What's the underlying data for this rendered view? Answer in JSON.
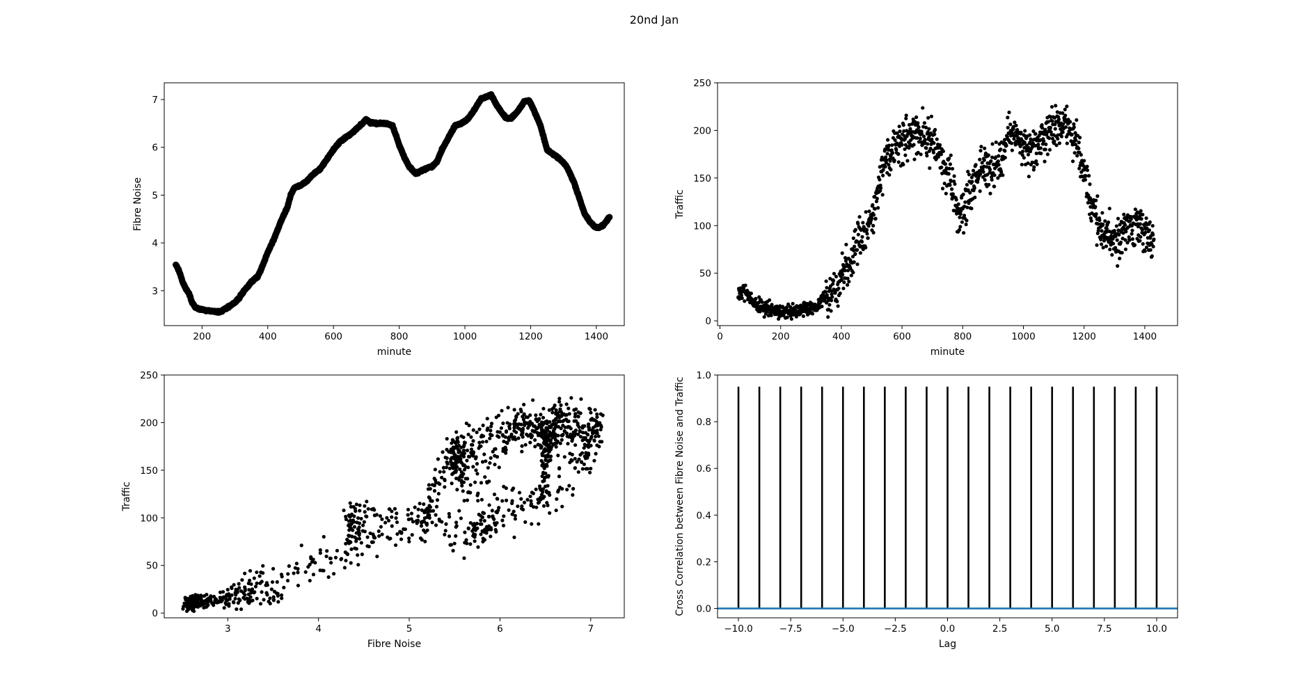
{
  "figure": {
    "title": "20nd Jan",
    "background": "#ffffff",
    "marker_color": "#000000",
    "line_color": "#1f77b4"
  },
  "chart_data": [
    {
      "id": "noise-vs-minute",
      "type": "scatter",
      "title": "",
      "xlabel": "minute",
      "ylabel": "Fibre Noise",
      "xlim": [
        85,
        1485
      ],
      "ylim": [
        2.27,
        7.35
      ],
      "xticks": [
        200,
        400,
        600,
        800,
        1000,
        1200,
        1400
      ],
      "xtick_labels": [
        "200",
        "400",
        "600",
        "800",
        "1000",
        "1200",
        "1400"
      ],
      "yticks": [
        3,
        4,
        5,
        6,
        7
      ],
      "ytick_labels": [
        "3",
        "4",
        "5",
        "6",
        "7"
      ],
      "marker": "large-dot",
      "anchors": [
        [
          120,
          3.55
        ],
        [
          130,
          3.42
        ],
        [
          140,
          3.2
        ],
        [
          150,
          3.05
        ],
        [
          160,
          2.95
        ],
        [
          170,
          2.75
        ],
        [
          180,
          2.65
        ],
        [
          190,
          2.62
        ],
        [
          200,
          2.6
        ],
        [
          220,
          2.58
        ],
        [
          240,
          2.57
        ],
        [
          255,
          2.55
        ],
        [
          270,
          2.62
        ],
        [
          290,
          2.7
        ],
        [
          310,
          2.82
        ],
        [
          330,
          3.02
        ],
        [
          350,
          3.18
        ],
        [
          370,
          3.3
        ],
        [
          380,
          3.45
        ],
        [
          400,
          3.8
        ],
        [
          420,
          4.1
        ],
        [
          440,
          4.45
        ],
        [
          460,
          4.75
        ],
        [
          470,
          5.0
        ],
        [
          480,
          5.15
        ],
        [
          500,
          5.2
        ],
        [
          520,
          5.3
        ],
        [
          540,
          5.45
        ],
        [
          560,
          5.55
        ],
        [
          580,
          5.75
        ],
        [
          600,
          5.95
        ],
        [
          620,
          6.12
        ],
        [
          640,
          6.22
        ],
        [
          660,
          6.32
        ],
        [
          680,
          6.45
        ],
        [
          700,
          6.58
        ],
        [
          710,
          6.52
        ],
        [
          730,
          6.5
        ],
        [
          760,
          6.5
        ],
        [
          780,
          6.45
        ],
        [
          790,
          6.25
        ],
        [
          800,
          6.05
        ],
        [
          815,
          5.8
        ],
        [
          830,
          5.6
        ],
        [
          850,
          5.45
        ],
        [
          865,
          5.5
        ],
        [
          880,
          5.55
        ],
        [
          900,
          5.6
        ],
        [
          915,
          5.7
        ],
        [
          930,
          5.95
        ],
        [
          950,
          6.2
        ],
        [
          970,
          6.45
        ],
        [
          990,
          6.5
        ],
        [
          1010,
          6.6
        ],
        [
          1030,
          6.8
        ],
        [
          1050,
          7.02
        ],
        [
          1065,
          7.05
        ],
        [
          1080,
          7.1
        ],
        [
          1095,
          6.9
        ],
        [
          1110,
          6.75
        ],
        [
          1125,
          6.62
        ],
        [
          1140,
          6.6
        ],
        [
          1160,
          6.75
        ],
        [
          1180,
          6.95
        ],
        [
          1195,
          6.98
        ],
        [
          1210,
          6.78
        ],
        [
          1230,
          6.45
        ],
        [
          1250,
          5.95
        ],
        [
          1270,
          5.85
        ],
        [
          1290,
          5.75
        ],
        [
          1310,
          5.6
        ],
        [
          1330,
          5.3
        ],
        [
          1350,
          4.9
        ],
        [
          1365,
          4.6
        ],
        [
          1380,
          4.45
        ],
        [
          1395,
          4.33
        ],
        [
          1410,
          4.32
        ],
        [
          1425,
          4.4
        ],
        [
          1440,
          4.55
        ]
      ],
      "point_step": 1
    },
    {
      "id": "traffic-vs-minute",
      "type": "scatter",
      "title": "",
      "xlabel": "minute",
      "ylabel": "Traffic",
      "xlim": [
        -8,
        1508
      ],
      "ylim": [
        -5,
        250
      ],
      "xticks": [
        0,
        200,
        400,
        600,
        800,
        1000,
        1200,
        1400
      ],
      "xtick_labels": [
        "0",
        "200",
        "400",
        "600",
        "800",
        "1000",
        "1200",
        "1400"
      ],
      "yticks": [
        0,
        50,
        100,
        150,
        200,
        250
      ],
      "ytick_labels": [
        "0",
        "50",
        "100",
        "150",
        "200",
        "250"
      ],
      "marker": "dot",
      "anchors": [
        [
          60,
          28
        ],
        [
          80,
          30
        ],
        [
          100,
          22
        ],
        [
          120,
          18
        ],
        [
          140,
          14
        ],
        [
          170,
          12
        ],
        [
          200,
          10
        ],
        [
          230,
          10
        ],
        [
          260,
          11
        ],
        [
          290,
          12
        ],
        [
          320,
          15
        ],
        [
          340,
          25
        ],
        [
          360,
          28
        ],
        [
          380,
          30
        ],
        [
          400,
          42
        ],
        [
          420,
          60
        ],
        [
          440,
          72
        ],
        [
          460,
          85
        ],
        [
          480,
          92
        ],
        [
          500,
          110
        ],
        [
          520,
          135
        ],
        [
          540,
          160
        ],
        [
          560,
          172
        ],
        [
          580,
          180
        ],
        [
          600,
          188
        ],
        [
          620,
          190
        ],
        [
          640,
          200
        ],
        [
          660,
          198
        ],
        [
          680,
          192
        ],
        [
          700,
          188
        ],
        [
          720,
          175
        ],
        [
          740,
          162
        ],
        [
          760,
          150
        ],
        [
          770,
          138
        ],
        [
          780,
          120
        ],
        [
          790,
          110
        ],
        [
          800,
          112
        ],
        [
          810,
          125
        ],
        [
          830,
          138
        ],
        [
          850,
          150
        ],
        [
          870,
          160
        ],
        [
          890,
          165
        ],
        [
          910,
          162
        ],
        [
          930,
          170
        ],
        [
          950,
          195
        ],
        [
          970,
          200
        ],
        [
          990,
          188
        ],
        [
          1010,
          180
        ],
        [
          1030,
          182
        ],
        [
          1050,
          188
        ],
        [
          1070,
          195
        ],
        [
          1090,
          200
        ],
        [
          1110,
          205
        ],
        [
          1130,
          208
        ],
        [
          1150,
          210
        ],
        [
          1170,
          190
        ],
        [
          1190,
          165
        ],
        [
          1210,
          140
        ],
        [
          1230,
          120
        ],
        [
          1250,
          100
        ],
        [
          1270,
          92
        ],
        [
          1290,
          88
        ],
        [
          1310,
          88
        ],
        [
          1330,
          95
        ],
        [
          1350,
          100
        ],
        [
          1370,
          100
        ],
        [
          1390,
          95
        ],
        [
          1410,
          90
        ],
        [
          1430,
          85
        ]
      ],
      "noise": 11,
      "point_step": 1
    },
    {
      "id": "traffic-vs-noise",
      "type": "scatter",
      "title": "",
      "xlabel": "Fibre Noise",
      "ylabel": "Traffic",
      "xlim": [
        2.3,
        7.37
      ],
      "ylim": [
        -5,
        250
      ],
      "xticks": [
        3,
        4,
        5,
        6,
        7
      ],
      "xtick_labels": [
        "3",
        "4",
        "5",
        "6",
        "7"
      ],
      "yticks": [
        0,
        50,
        100,
        150,
        200,
        250
      ],
      "ytick_labels": [
        "0",
        "50",
        "100",
        "150",
        "200",
        "250"
      ],
      "marker": "dot",
      "derived_from": [
        "noise-vs-minute",
        "traffic-vs-minute"
      ]
    },
    {
      "id": "cross-correlation",
      "type": "stem",
      "title": "",
      "xlabel": "Lag",
      "ylabel": "Cross Correlation between Fibre Noise and Traffic",
      "xlim": [
        -11,
        11
      ],
      "ylim": [
        -0.04,
        1.0
      ],
      "xticks": [
        -10,
        -7.5,
        -5,
        -2.5,
        0,
        2.5,
        5,
        7.5,
        10
      ],
      "xtick_labels": [
        "−10.0",
        "−7.5",
        "−5.0",
        "−2.5",
        "0.0",
        "2.5",
        "5.0",
        "7.5",
        "10.0"
      ],
      "yticks": [
        0,
        0.2,
        0.4,
        0.6,
        0.8,
        1.0
      ],
      "ytick_labels": [
        "0.0",
        "0.2",
        "0.4",
        "0.6",
        "0.8",
        "1.0"
      ],
      "lags": [
        -10,
        -9,
        -8,
        -7,
        -6,
        -5,
        -4,
        -3,
        -2,
        -1,
        0,
        1,
        2,
        3,
        4,
        5,
        6,
        7,
        8,
        9,
        10
      ],
      "values": [
        0.95,
        0.95,
        0.95,
        0.95,
        0.95,
        0.95,
        0.95,
        0.95,
        0.95,
        0.95,
        0.95,
        0.95,
        0.95,
        0.95,
        0.95,
        0.95,
        0.95,
        0.95,
        0.95,
        0.95,
        0.95
      ],
      "baseline": 0.0
    }
  ]
}
